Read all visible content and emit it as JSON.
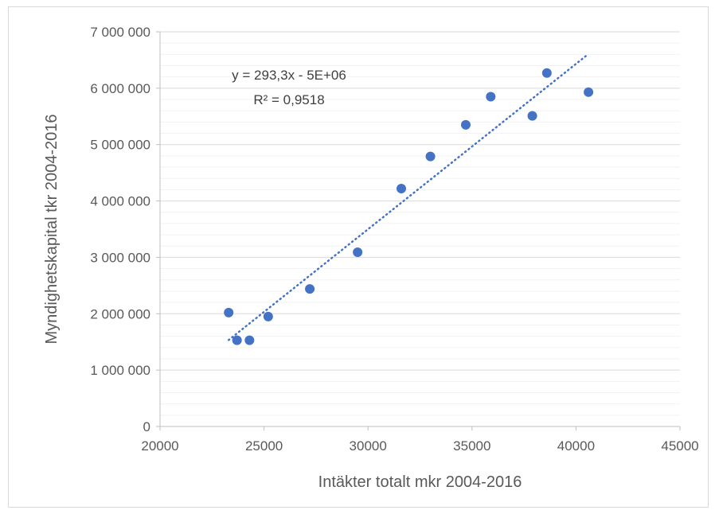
{
  "chart_data": {
    "type": "scatter",
    "title": "",
    "xlabel": "Intäkter totalt mkr 2004-2016",
    "ylabel": "Myndighetskapital tkr 2004-2016",
    "xlim": [
      20000,
      45000
    ],
    "ylim": [
      0,
      7000000
    ],
    "x_ticks": [
      20000,
      25000,
      30000,
      35000,
      40000,
      45000
    ],
    "x_tick_labels": [
      "20000",
      "25000",
      "30000",
      "35000",
      "40000",
      "45000"
    ],
    "y_ticks": [
      0,
      1000000,
      2000000,
      3000000,
      4000000,
      5000000,
      6000000,
      7000000
    ],
    "y_tick_labels": [
      "0",
      "1 000 000",
      "2 000 000",
      "3 000 000",
      "4 000 000",
      "5 000 000",
      "6 000 000",
      "7 000 000"
    ],
    "grid": true,
    "legend": false,
    "marker_color": "#4472c4",
    "trendline_color": "#4472c4",
    "points": [
      {
        "x": 23300,
        "y": 2020000
      },
      {
        "x": 23700,
        "y": 1530000
      },
      {
        "x": 24300,
        "y": 1530000
      },
      {
        "x": 25200,
        "y": 1950000
      },
      {
        "x": 27200,
        "y": 2440000
      },
      {
        "x": 29500,
        "y": 3090000
      },
      {
        "x": 31600,
        "y": 4220000
      },
      {
        "x": 33000,
        "y": 4790000
      },
      {
        "x": 34700,
        "y": 5350000
      },
      {
        "x": 35900,
        "y": 5850000
      },
      {
        "x": 37900,
        "y": 5510000
      },
      {
        "x": 38600,
        "y": 6270000
      },
      {
        "x": 40600,
        "y": 5930000
      }
    ],
    "trendline": {
      "type": "linear",
      "slope": 293.3,
      "intercept": -5300000,
      "x_range": [
        23300,
        40600
      ],
      "equation": "y = 293,3x - 5E+06",
      "r_squared": "R² = 0,9518"
    }
  }
}
